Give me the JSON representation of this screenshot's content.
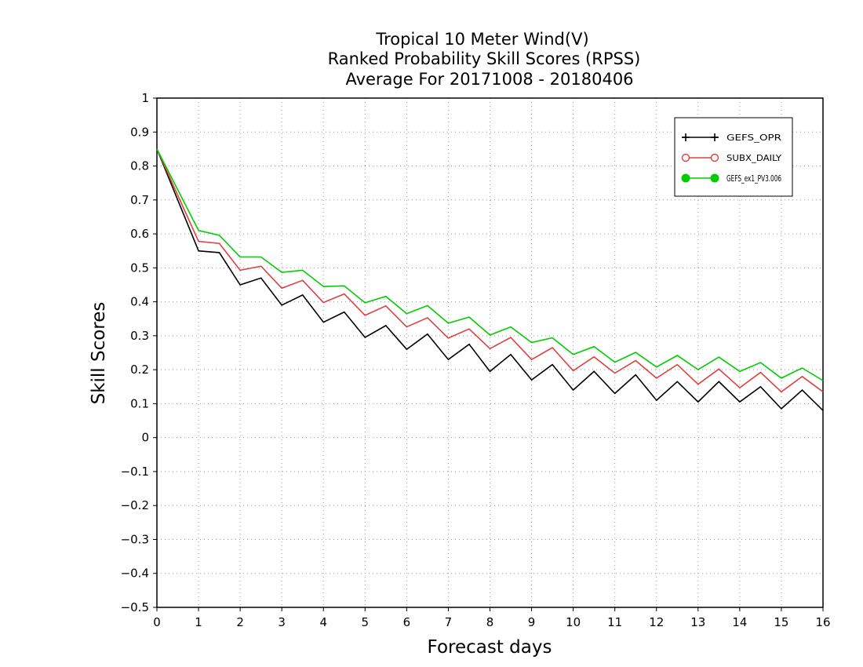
{
  "chart_data": {
    "type": "line",
    "title": [
      "Tropical 10 Meter Wind(V)",
      "Ranked Probability Skill Scores (RPSS)",
      "Average For 20171008 - 20180406"
    ],
    "xlabel": "Forecast days",
    "ylabel": "Skill Scores",
    "xlim": [
      0,
      16
    ],
    "ylim": [
      -0.5,
      1
    ],
    "xticks": [
      0,
      1,
      2,
      3,
      4,
      5,
      6,
      7,
      8,
      9,
      10,
      11,
      12,
      13,
      14,
      15,
      16
    ],
    "yticks": [
      -0.5,
      -0.4,
      -0.3,
      -0.2,
      -0.1,
      0,
      0.1,
      0.2,
      0.3,
      0.4,
      0.5,
      0.6,
      0.7,
      0.8,
      0.9,
      1
    ],
    "ytick_labels": [
      "−0.5",
      "−0.4",
      "−0.3",
      "−0.2",
      "−0.1",
      "0",
      "0.1",
      "0.2",
      "0.3",
      "0.4",
      "0.5",
      "0.6",
      "0.7",
      "0.8",
      "0.9",
      "1"
    ],
    "grid": true,
    "legend_position": "top-right",
    "x": [
      0,
      1,
      1.5,
      2,
      2.5,
      3,
      3.5,
      4,
      4.5,
      5,
      5.5,
      6,
      6.5,
      7,
      7.5,
      8,
      8.5,
      9,
      9.5,
      10,
      10.5,
      11,
      11.5,
      12,
      12.5,
      13,
      13.5,
      14,
      14.5,
      15,
      15.5,
      16
    ],
    "series": [
      {
        "name": "GEFS_OPR",
        "color": "#000000",
        "marker": "plus",
        "values": [
          0.85,
          0.55,
          0.545,
          0.45,
          0.47,
          0.39,
          0.42,
          0.34,
          0.37,
          0.295,
          0.33,
          0.26,
          0.305,
          0.23,
          0.275,
          0.195,
          0.245,
          0.17,
          0.215,
          0.14,
          0.195,
          0.13,
          0.185,
          0.11,
          0.165,
          0.105,
          0.165,
          0.105,
          0.15,
          0.085,
          0.14,
          0.08
        ]
      },
      {
        "name": "SUBX_DAILY",
        "color": "#e04040",
        "marker": "open-circle",
        "values": [
          0.85,
          0.578,
          0.572,
          0.493,
          0.505,
          0.44,
          0.463,
          0.398,
          0.423,
          0.36,
          0.388,
          0.326,
          0.353,
          0.293,
          0.32,
          0.262,
          0.295,
          0.23,
          0.265,
          0.197,
          0.238,
          0.19,
          0.227,
          0.175,
          0.215,
          0.157,
          0.202,
          0.147,
          0.192,
          0.135,
          0.18,
          0.135
        ]
      },
      {
        "name": "GEFS_ex1_PV3.006",
        "color": "#00cc00",
        "marker": "filled-circle",
        "values": [
          0.85,
          0.61,
          0.596,
          0.532,
          0.532,
          0.487,
          0.493,
          0.445,
          0.447,
          0.397,
          0.416,
          0.365,
          0.389,
          0.337,
          0.355,
          0.302,
          0.326,
          0.28,
          0.294,
          0.245,
          0.268,
          0.222,
          0.251,
          0.208,
          0.242,
          0.2,
          0.237,
          0.195,
          0.221,
          0.175,
          0.205,
          0.168
        ]
      }
    ]
  }
}
